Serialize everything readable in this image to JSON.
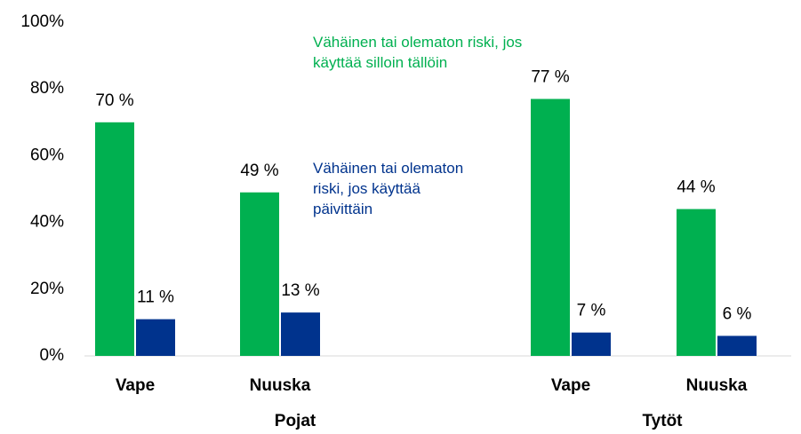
{
  "chart_data": {
    "type": "bar",
    "categories": [
      "Vape",
      "Nuuska",
      "Vape",
      "Nuuska"
    ],
    "groups": [
      "Pojat",
      "Tytöt"
    ],
    "series": [
      {
        "name": "Vähäinen tai olematon riski, jos käyttää silloin tällöin",
        "color": "#00b050",
        "values": [
          70,
          49,
          77,
          44
        ],
        "value_labels": [
          "70 %",
          "49 %",
          "77 %",
          "44 %"
        ]
      },
      {
        "name": "Vähäinen tai olematon riski, jos käyttää päivittäin",
        "color": "#00338d",
        "values": [
          11,
          13,
          7,
          6
        ],
        "value_labels": [
          "11 %",
          "13 %",
          "7 %",
          "6 %"
        ]
      }
    ],
    "ylim": [
      0,
      100
    ],
    "yticks": [
      {
        "value": 0,
        "label": "0%"
      },
      {
        "value": 20,
        "label": "20%"
      },
      {
        "value": 40,
        "label": "40%"
      },
      {
        "value": 60,
        "label": "60%"
      },
      {
        "value": 80,
        "label": "80%"
      },
      {
        "value": 100,
        "label": "100%"
      }
    ],
    "grid": false
  }
}
